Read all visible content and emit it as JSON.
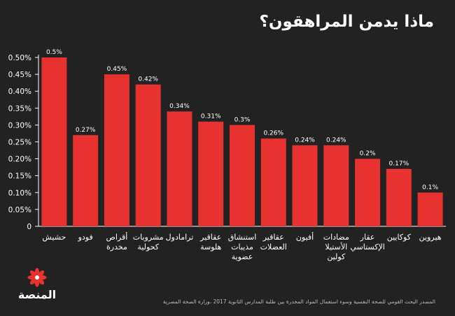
{
  "title": "ماذا يدمن المراهقون؟",
  "source": "المصدر البحث القومي للصحة النفسية وسوء استعمال المواد المخدرة بين طلبة المدارس الثانوية 2017 ،وزارة الصحة المصرية",
  "logo": {
    "text": "المنصة"
  },
  "colors": {
    "background": "#222222",
    "bar": "#e8322f",
    "axis": "#ffffff",
    "logo_flower": "#e8322f"
  },
  "chart_data": {
    "type": "bar",
    "categories": [
      [
        "حشيش"
      ],
      [
        "فودو"
      ],
      [
        "أقراص",
        "مخدرة"
      ],
      [
        "مشروبات",
        "كحولية"
      ],
      [
        "ترامادول"
      ],
      [
        "عقاقير",
        "هلوسة"
      ],
      [
        "استنشاق",
        "مذيبات",
        "عضوية"
      ],
      [
        "عقاقير",
        "العضلات"
      ],
      [
        "أفيون"
      ],
      [
        "مضادات",
        "الأستيلا",
        "كولين"
      ],
      [
        "عقار",
        "الإكستاسي"
      ],
      [
        "كوكايين"
      ],
      [
        "هيروين"
      ]
    ],
    "values": [
      0.5,
      0.27,
      0.45,
      0.42,
      0.34,
      0.31,
      0.3,
      0.26,
      0.24,
      0.24,
      0.2,
      0.17,
      0.1
    ],
    "data_labels": [
      "0.5%",
      "0.27%",
      "0.45%",
      "0.42%",
      "0.34%",
      "0.31%",
      "0.3%",
      "0.26%",
      "0.24%",
      "0.24%",
      "0.2%",
      "0.17%",
      "0.1%"
    ],
    "ylim": [
      0,
      0.5
    ],
    "yticks": [
      0,
      0.05,
      0.1,
      0.15,
      0.2,
      0.25,
      0.3,
      0.35,
      0.4,
      0.45,
      0.5
    ],
    "ytick_labels": [
      "0",
      "0.05%",
      "0.10%",
      "0.15%",
      "0.20%",
      "0.25%",
      "0.30%",
      "0.35%",
      "0.40%",
      "0.45%",
      "0.50%"
    ],
    "grid": false,
    "legend": "none"
  }
}
